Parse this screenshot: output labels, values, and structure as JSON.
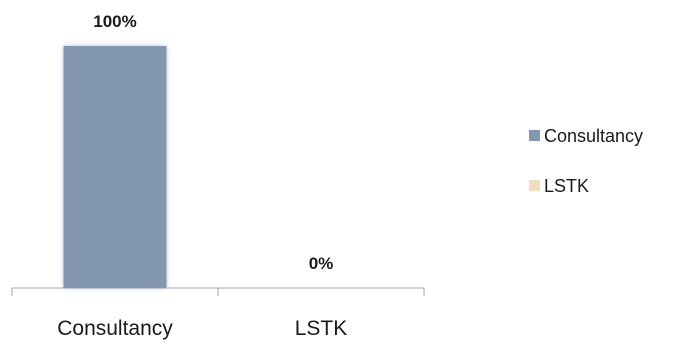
{
  "chart_data": {
    "type": "bar",
    "categories": [
      "Consultancy",
      "LSTK"
    ],
    "series": [
      {
        "name": "Consultancy",
        "values": [
          100,
          null
        ]
      },
      {
        "name": "LSTK",
        "values": [
          null,
          0
        ]
      }
    ],
    "data_labels": [
      "100%",
      "0%"
    ],
    "ylim": [
      0,
      100
    ],
    "grid": false,
    "legend_placement": "right",
    "colors": {
      "Consultancy": "#8497B0",
      "LSTK": "#F2DCC2",
      "axis": "#a6a6a6",
      "text": "#1a1a1a"
    },
    "legend": [
      {
        "label": "Consultancy",
        "color": "#8497B0"
      },
      {
        "label": "LSTK",
        "color": "#F2DCC2"
      }
    ]
  }
}
